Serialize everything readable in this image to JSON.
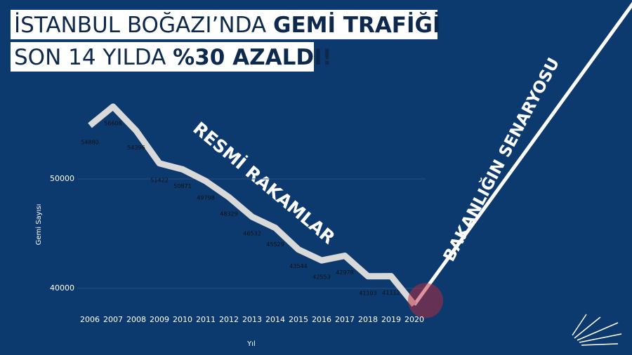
{
  "chart_data": {
    "type": "line",
    "title": "İSTANBUL BOĞAZI’NDA ",
    "title_bold": "GEMİ TRAFİĞİ",
    "subtitle": "SON 14 YILDA ",
    "subtitle_bold": "%30 AZALDI!",
    "annotations": [
      "RESMİ RAKAMLAR",
      "BAKANLIĞIN SENARYOSU"
    ],
    "x_label": "Yıl",
    "y_label": "Gemi Sayısı",
    "categories": [
      "2006",
      "2007",
      "2008",
      "2009",
      "2010",
      "2011",
      "2012",
      "2013",
      "2014",
      "2015",
      "2016",
      "2017",
      "2018",
      "2019",
      "2020"
    ],
    "values": [
      54880,
      56606,
      54396,
      51422,
      50871,
      49798,
      48329,
      46532,
      45529,
      43544,
      42553,
      42978,
      41103,
      41112,
      38500
    ],
    "value_labels": [
      "54880",
      "56606",
      "54396",
      "51422",
      "50871",
      "49798",
      "48329",
      "46532",
      "45529",
      "43544",
      "42553",
      "42978",
      "41103",
      "41112",
      null
    ],
    "color": "#d9d9d9",
    "ylim": [
      37500,
      57500
    ],
    "yticks": [
      40000,
      50000
    ],
    "grid": true
  }
}
